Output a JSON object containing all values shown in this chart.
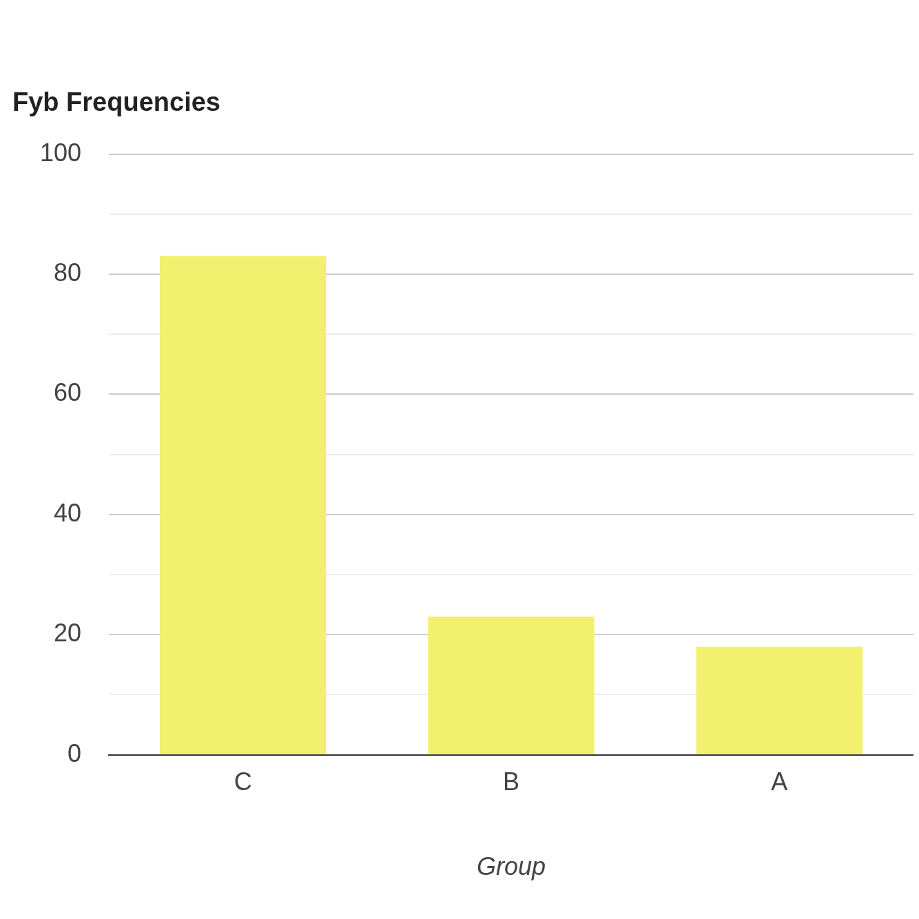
{
  "chart_data": {
    "type": "bar",
    "title": "Fyb Frequencies",
    "xlabel": "Group",
    "categories": [
      "C",
      "B",
      "A"
    ],
    "values": [
      83,
      23,
      18
    ],
    "color": "#f3ef6f",
    "ylim": [
      0,
      100
    ],
    "yticks": [
      0,
      {
        "value": 10,
        "label": null
      },
      20,
      {
        "value": 30,
        "label": null
      },
      40,
      {
        "value": 50,
        "label": null
      },
      60,
      {
        "value": 70,
        "label": null
      },
      80,
      {
        "value": 90,
        "label": null
      },
      100
    ],
    "grid": "y",
    "legend": false
  }
}
